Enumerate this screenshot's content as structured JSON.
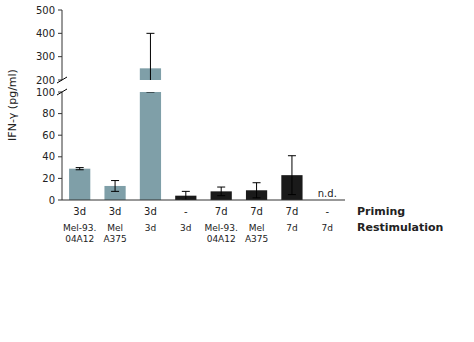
{
  "chart_data": {
    "type": "bar",
    "y_label": "IFN-γ (pg/ml)",
    "categories": [
      [
        "3d",
        "Mel-93.\n04A12"
      ],
      [
        "3d",
        "Mel\nA375"
      ],
      [
        "3d",
        "3d"
      ],
      [
        "-",
        "3d"
      ],
      [
        "7d",
        "Mel-93.\n04A12"
      ],
      [
        "7d",
        "Mel\nA375"
      ],
      [
        "7d",
        "7d"
      ],
      [
        "-",
        "7d"
      ]
    ],
    "category_levels": [
      "Priming",
      "Restimulation"
    ],
    "values": [
      29,
      13,
      250,
      4,
      8,
      9,
      23,
      0
    ],
    "errors": [
      1,
      5,
      150,
      4,
      4,
      7,
      18,
      0
    ],
    "colors": [
      "#7f9fa8",
      "#7f9fa8",
      "#7f9fa8",
      "#1a1a1a",
      "#1a1a1a",
      "#1a1a1a",
      "#1a1a1a",
      "#1a1a1a"
    ],
    "ylim": [
      [
        0,
        100
      ],
      [
        200,
        500
      ]
    ],
    "yticks": [
      [
        0,
        20,
        40,
        60,
        80,
        100
      ],
      [
        200,
        300,
        400,
        500
      ]
    ],
    "annotations": [
      {
        "text": "n.d.",
        "index": 7
      }
    ]
  }
}
